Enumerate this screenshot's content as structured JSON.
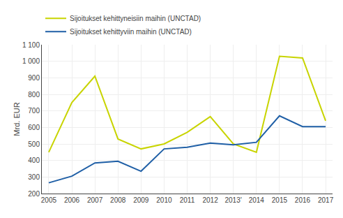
{
  "chart_data": {
    "type": "line",
    "y_label": "Mrd. EUR",
    "categories": [
      "2005",
      "2006",
      "2007",
      "2008",
      "2009",
      "2010",
      "2011",
      "2012",
      "2013ʼ",
      "2014",
      "2015",
      "2016",
      "2017"
    ],
    "series": [
      {
        "name": "Sijoitukset kehittyneisiin maihin (UNCTAD)",
        "color": "#c8d400",
        "values": [
          450,
          750,
          910,
          530,
          470,
          500,
          570,
          665,
          500,
          450,
          1030,
          1020,
          640
        ]
      },
      {
        "name": "Sijoitukset kehittyviin maihin (UNCTAD)",
        "color": "#1f5fa6",
        "values": [
          265,
          305,
          385,
          395,
          335,
          470,
          480,
          505,
          495,
          510,
          670,
          605,
          605
        ]
      }
    ],
    "ylim": [
      200,
      1100
    ],
    "yticks": [
      200,
      300,
      400,
      500,
      600,
      700,
      800,
      900,
      {
        "value": 1000,
        "label": "1 000"
      },
      {
        "value": 1100,
        "label": "1 100"
      }
    ],
    "grid": true,
    "legend": "upper left"
  }
}
